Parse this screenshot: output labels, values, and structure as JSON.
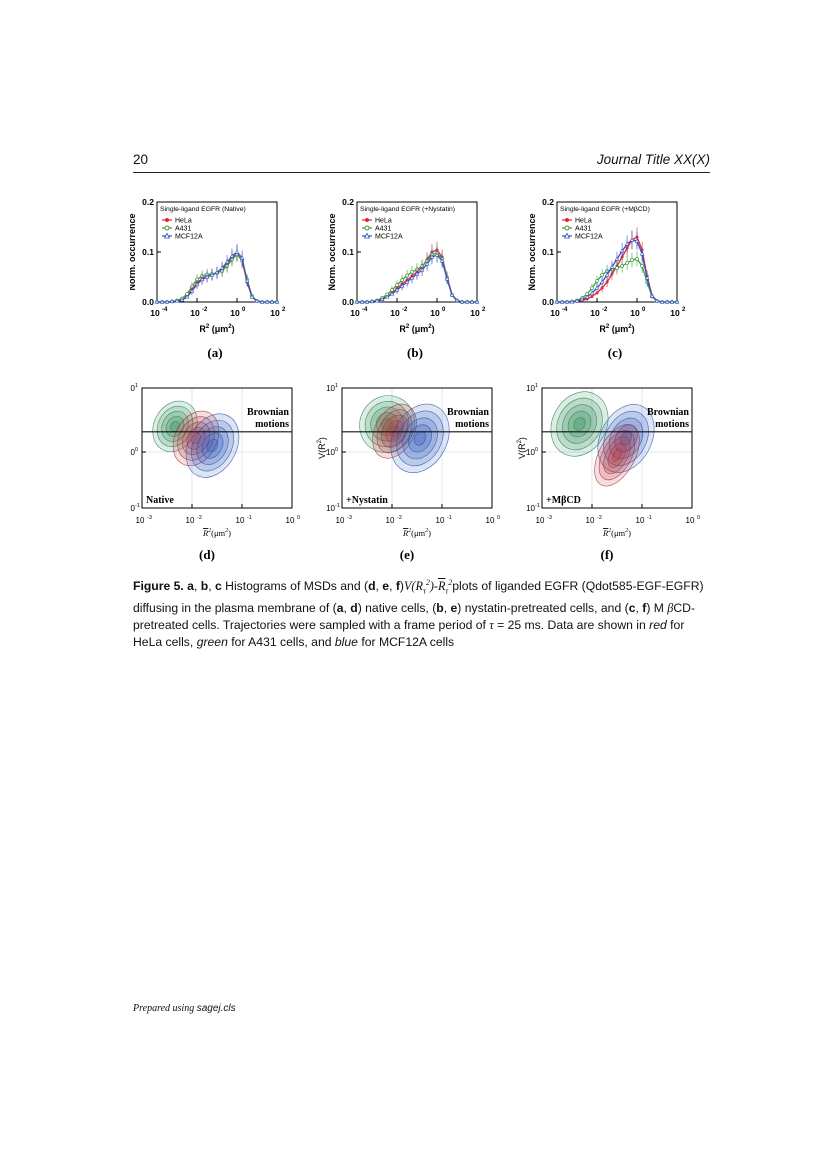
{
  "header": {
    "page_number": "20",
    "journal_title": "Journal Title XX(X)"
  },
  "histograms": {
    "ylabel": "Norm. occurrence",
    "xlabel_main": "R",
    "xlabel_unit": "(μm",
    "yticks": [
      "0.0",
      "0.1",
      "0.2"
    ],
    "xticks": [
      "10",
      "10",
      "10",
      "10"
    ],
    "xtick_exps": [
      "-4",
      "-2",
      "0",
      "2"
    ],
    "legend": [
      "HeLa",
      "A431",
      "MCF12A"
    ],
    "series_colors": {
      "HeLa": "#e8262b",
      "A431": "#3d9e3d",
      "MCF12A": "#3553c5"
    },
    "panels": [
      {
        "label": "(a)",
        "title": "Single-ligand EGFR (Native)"
      },
      {
        "label": "(b)",
        "title": "Single-ligand EGFR (+Nystatin)"
      },
      {
        "label": "(c)",
        "title": "Single-ligand EGFR (+MβCD)"
      }
    ]
  },
  "contours": {
    "brownian_line1": "Brownian",
    "brownian_line2": "motions",
    "ylabel": "V(R",
    "xticks": [
      "10",
      "10",
      "10",
      "10"
    ],
    "xtick_exps": [
      "-3",
      "-2",
      "-1",
      "0"
    ],
    "yticks": [
      "10",
      "10",
      "10"
    ],
    "ytick_exps": [
      "1",
      "0",
      "-1"
    ],
    "xlabel": "R",
    "xlabel_unit": "(μm",
    "panels": [
      {
        "label": "(d)",
        "condition": "Native"
      },
      {
        "label": "(e)",
        "condition": "+Nystatin"
      },
      {
        "label": "(f)",
        "condition": "+MβCD"
      }
    ]
  },
  "chart_data": [
    {
      "type": "line",
      "title": "Single-ligand EGFR (Native)",
      "ylabel": "Norm. occurrence",
      "xlabel": "R2 (μm2)",
      "xscale": "log",
      "xlim": [
        0.0001,
        100
      ],
      "ylim": [
        0,
        0.2
      ],
      "x": [
        0.0001,
        0.00018,
        0.00032,
        0.00056,
        0.001,
        0.0018,
        0.0032,
        0.0056,
        0.01,
        0.018,
        0.032,
        0.056,
        0.1,
        0.18,
        0.32,
        0.56,
        1,
        1.8,
        3.2,
        5.6,
        10,
        18,
        32,
        56,
        100
      ],
      "series": [
        {
          "name": "HeLa",
          "values": [
            0,
            0,
            0,
            0.001,
            0.002,
            0.005,
            0.012,
            0.025,
            0.038,
            0.047,
            0.052,
            0.055,
            0.058,
            0.065,
            0.075,
            0.088,
            0.097,
            0.082,
            0.04,
            0.01,
            0.002,
            0,
            0,
            0,
            0
          ]
        },
        {
          "name": "A431",
          "values": [
            0,
            0,
            0,
            0.001,
            0.003,
            0.007,
            0.016,
            0.031,
            0.045,
            0.052,
            0.055,
            0.056,
            0.058,
            0.062,
            0.072,
            0.085,
            0.095,
            0.083,
            0.045,
            0.012,
            0.002,
            0,
            0,
            0,
            0
          ]
        },
        {
          "name": "MCF12A",
          "values": [
            0,
            0,
            0,
            0.001,
            0.002,
            0.004,
            0.01,
            0.022,
            0.035,
            0.045,
            0.05,
            0.054,
            0.059,
            0.068,
            0.08,
            0.092,
            0.1,
            0.088,
            0.042,
            0.01,
            0.002,
            0,
            0,
            0,
            0
          ]
        }
      ]
    },
    {
      "type": "line",
      "title": "Single-ligand EGFR (+Nystatin)",
      "ylabel": "Norm. occurrence",
      "xlabel": "R2 (μm2)",
      "xscale": "log",
      "xlim": [
        0.0001,
        100
      ],
      "ylim": [
        0,
        0.2
      ],
      "x": [
        0.0001,
        0.00018,
        0.00032,
        0.00056,
        0.001,
        0.0018,
        0.0032,
        0.0056,
        0.01,
        0.018,
        0.032,
        0.056,
        0.1,
        0.18,
        0.32,
        0.56,
        1,
        1.8,
        3.2,
        5.6,
        10,
        18,
        32,
        56,
        100
      ],
      "series": [
        {
          "name": "HeLa",
          "values": [
            0,
            0,
            0,
            0.001,
            0.003,
            0.006,
            0.011,
            0.018,
            0.027,
            0.036,
            0.044,
            0.052,
            0.06,
            0.07,
            0.085,
            0.1,
            0.104,
            0.09,
            0.05,
            0.015,
            0.003,
            0,
            0,
            0,
            0
          ]
        },
        {
          "name": "A431",
          "values": [
            0,
            0,
            0,
            0.001,
            0.003,
            0.008,
            0.015,
            0.024,
            0.034,
            0.044,
            0.053,
            0.06,
            0.065,
            0.072,
            0.082,
            0.095,
            0.098,
            0.086,
            0.048,
            0.014,
            0.003,
            0,
            0,
            0,
            0
          ]
        },
        {
          "name": "MCF12A",
          "values": [
            0,
            0,
            0,
            0.001,
            0.002,
            0.005,
            0.01,
            0.016,
            0.024,
            0.032,
            0.04,
            0.048,
            0.056,
            0.064,
            0.076,
            0.09,
            0.094,
            0.082,
            0.046,
            0.014,
            0.003,
            0,
            0,
            0,
            0
          ]
        }
      ]
    },
    {
      "type": "line",
      "title": "Single-ligand EGFR (+MβCD)",
      "ylabel": "Norm. occurrence",
      "xlabel": "R2 (μm2)",
      "xscale": "log",
      "xlim": [
        0.0001,
        100
      ],
      "ylim": [
        0,
        0.2
      ],
      "x": [
        0.0001,
        0.00018,
        0.00032,
        0.00056,
        0.001,
        0.0018,
        0.0032,
        0.0056,
        0.01,
        0.018,
        0.032,
        0.056,
        0.1,
        0.18,
        0.32,
        0.56,
        1,
        1.8,
        3.2,
        5.6,
        10,
        18,
        32,
        56,
        100
      ],
      "series": [
        {
          "name": "HeLa",
          "values": [
            0,
            0,
            0,
            0,
            0.001,
            0.003,
            0.006,
            0.011,
            0.018,
            0.028,
            0.04,
            0.056,
            0.072,
            0.09,
            0.108,
            0.124,
            0.13,
            0.104,
            0.052,
            0.013,
            0.002,
            0,
            0,
            0,
            0
          ]
        },
        {
          "name": "A431",
          "values": [
            0,
            0,
            0,
            0.001,
            0.003,
            0.008,
            0.016,
            0.028,
            0.042,
            0.054,
            0.062,
            0.065,
            0.068,
            0.072,
            0.078,
            0.084,
            0.086,
            0.072,
            0.04,
            0.011,
            0.002,
            0,
            0,
            0,
            0
          ]
        },
        {
          "name": "MCF12A",
          "values": [
            0,
            0,
            0,
            0,
            0.002,
            0.005,
            0.01,
            0.018,
            0.028,
            0.04,
            0.054,
            0.07,
            0.086,
            0.102,
            0.116,
            0.124,
            0.122,
            0.096,
            0.048,
            0.012,
            0.002,
            0,
            0,
            0,
            0
          ]
        }
      ]
    }
  ],
  "caption": {
    "fig_label": "Figure 5.",
    "t1": " a",
    "t2": ", ",
    "t3": "b",
    "t4": ", ",
    "t5": "c",
    "t6": " Histograms of MSDs and (",
    "t7": "d",
    "t8": ", ",
    "t9": "e",
    "t10": ", ",
    "t11": "f",
    "t12": ")",
    "math1": "V(R",
    "t13": "plots of liganded EGFR (Qdot585-EGF-EGFR) diffusing in the plasma membrane of (",
    "t14": "a",
    "t15": ", ",
    "t16": "d",
    "t17": ") native cells, (",
    "t18": "b",
    "t19": ", ",
    "t20": "e",
    "t21": ") nystatin-pretreated cells, and (",
    "t22": "c",
    "t23": ", ",
    "t24": "f",
    "t25": ") M ",
    "beta": "β",
    "t26": "CD-pretreated cells. Trajectories were sampled with a frame period of ",
    "tau": "τ",
    "t27": " = 25 ms. Data are shown in ",
    "red": "red",
    "t28": " for HeLa cells, ",
    "green": "green",
    "t29": " for A431 cells, and ",
    "blue": "blue",
    "t30": " for MCF12A cells"
  },
  "footer": {
    "prepared": "Prepared using ",
    "cls": "sagej.cls"
  }
}
